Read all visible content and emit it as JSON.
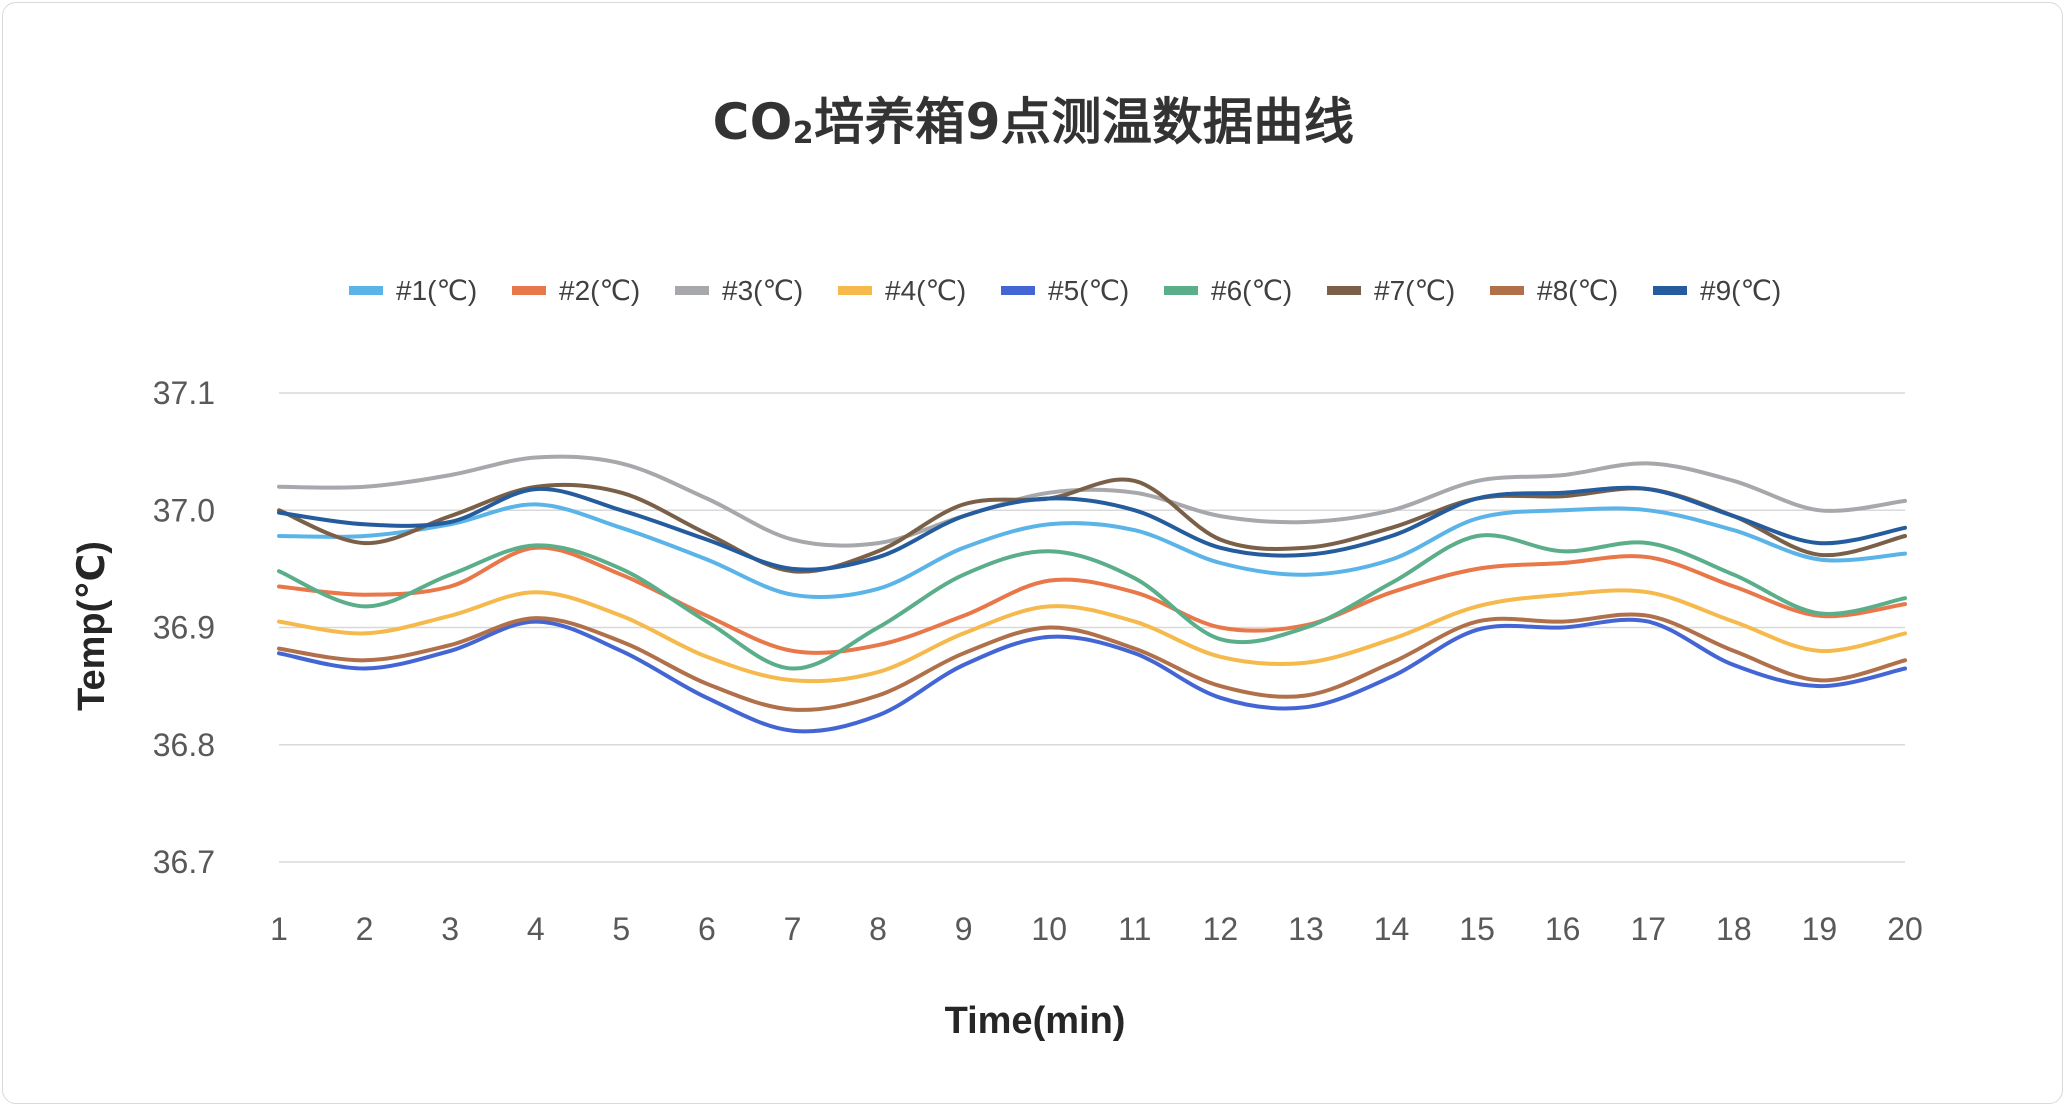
{
  "chart_data": {
    "type": "line",
    "title": "CO₂培养箱9点测温数据曲线",
    "title_prefix": "CO",
    "title_subscript": "2",
    "title_suffix": "培养箱9点测温数据曲线",
    "xlabel": "Time(min)",
    "ylabel": "Temp(℃)",
    "x_ticks": [
      "1",
      "2",
      "3",
      "4",
      "5",
      "6",
      "7",
      "8",
      "9",
      "10",
      "11",
      "12",
      "13",
      "14",
      "15",
      "16",
      "17",
      "18",
      "19",
      "20"
    ],
    "y_ticks": [
      "36.7",
      "36.8",
      "36.9",
      "37.0",
      "37.1"
    ],
    "xlim": [
      1,
      20
    ],
    "ylim": [
      36.7,
      37.1
    ],
    "grid": "horizontal",
    "legend_position": "top",
    "series": [
      {
        "name": "#1(℃)",
        "color": "#5BB4E8",
        "x": [
          1,
          2,
          3,
          4,
          5,
          6,
          7,
          8,
          9,
          10,
          11,
          12,
          13,
          14,
          15,
          16,
          17,
          18,
          19,
          20
        ],
        "values": [
          36.978,
          36.978,
          36.988,
          37.005,
          36.985,
          36.958,
          36.928,
          36.933,
          36.968,
          36.988,
          36.983,
          36.955,
          36.945,
          36.958,
          36.993,
          37.0,
          37.0,
          36.983,
          36.958,
          36.963
        ]
      },
      {
        "name": "#2(℃)",
        "color": "#E8774A",
        "x": [
          1,
          2,
          3,
          4,
          5,
          6,
          7,
          8,
          9,
          10,
          11,
          12,
          13,
          14,
          15,
          16,
          17,
          18,
          19,
          20
        ],
        "values": [
          36.935,
          36.928,
          36.935,
          36.968,
          36.945,
          36.91,
          36.88,
          36.885,
          36.91,
          36.94,
          36.93,
          36.9,
          36.902,
          36.93,
          36.95,
          36.955,
          36.96,
          36.935,
          36.91,
          36.92
        ]
      },
      {
        "name": "#3(℃)",
        "color": "#A6A8AB",
        "x": [
          1,
          2,
          3,
          4,
          5,
          6,
          7,
          8,
          9,
          10,
          11,
          12,
          13,
          14,
          15,
          16,
          17,
          18,
          19,
          20
        ],
        "values": [
          37.02,
          37.02,
          37.03,
          37.045,
          37.04,
          37.01,
          36.975,
          36.972,
          36.995,
          37.015,
          37.015,
          36.995,
          36.99,
          37.0,
          37.025,
          37.03,
          37.04,
          37.025,
          37.0,
          37.008
        ]
      },
      {
        "name": "#4(℃)",
        "color": "#F5B94C",
        "x": [
          1,
          2,
          3,
          4,
          5,
          6,
          7,
          8,
          9,
          10,
          11,
          12,
          13,
          14,
          15,
          16,
          17,
          18,
          19,
          20
        ],
        "values": [
          36.905,
          36.895,
          36.91,
          36.93,
          36.91,
          36.875,
          36.855,
          36.862,
          36.895,
          36.918,
          36.905,
          36.875,
          36.87,
          36.89,
          36.918,
          36.928,
          36.93,
          36.905,
          36.88,
          36.895
        ]
      },
      {
        "name": "#5(℃)",
        "color": "#4466D4",
        "x": [
          1,
          2,
          3,
          4,
          5,
          6,
          7,
          8,
          9,
          10,
          11,
          12,
          13,
          14,
          15,
          16,
          17,
          18,
          19,
          20
        ],
        "values": [
          36.878,
          36.865,
          36.88,
          36.905,
          36.88,
          36.84,
          36.812,
          36.825,
          36.868,
          36.892,
          36.878,
          36.84,
          36.832,
          36.858,
          36.898,
          36.9,
          36.905,
          36.868,
          36.85,
          36.865
        ]
      },
      {
        "name": "#6(℃)",
        "color": "#5BAE8A",
        "x": [
          1,
          2,
          3,
          4,
          5,
          6,
          7,
          8,
          9,
          10,
          11,
          12,
          13,
          14,
          15,
          16,
          17,
          18,
          19,
          20
        ],
        "values": [
          36.948,
          36.918,
          36.945,
          36.97,
          36.95,
          36.905,
          36.865,
          36.9,
          36.945,
          36.965,
          36.942,
          36.89,
          36.9,
          36.938,
          36.978,
          36.965,
          36.972,
          36.945,
          36.912,
          36.925
        ]
      },
      {
        "name": "#7(℃)",
        "color": "#7A6048",
        "x": [
          1,
          2,
          3,
          4,
          5,
          6,
          7,
          8,
          9,
          10,
          11,
          12,
          13,
          14,
          15,
          16,
          17,
          18,
          19,
          20
        ],
        "values": [
          37.0,
          36.972,
          36.995,
          37.02,
          37.015,
          36.98,
          36.948,
          36.965,
          37.005,
          37.01,
          37.025,
          36.975,
          36.968,
          36.985,
          37.01,
          37.012,
          37.018,
          36.995,
          36.962,
          36.978
        ]
      },
      {
        "name": "#8(℃)",
        "color": "#B0704A",
        "x": [
          1,
          2,
          3,
          4,
          5,
          6,
          7,
          8,
          9,
          10,
          11,
          12,
          13,
          14,
          15,
          16,
          17,
          18,
          19,
          20
        ],
        "values": [
          36.882,
          36.872,
          36.885,
          36.908,
          36.888,
          36.852,
          36.83,
          36.842,
          36.878,
          36.9,
          36.882,
          36.85,
          36.842,
          36.87,
          36.905,
          36.905,
          36.91,
          36.88,
          36.855,
          36.872
        ]
      },
      {
        "name": "#9(℃)",
        "color": "#245C9E",
        "x": [
          1,
          2,
          3,
          4,
          5,
          6,
          7,
          8,
          9,
          10,
          11,
          12,
          13,
          14,
          15,
          16,
          17,
          18,
          19,
          20
        ],
        "values": [
          36.998,
          36.988,
          36.99,
          37.018,
          37.0,
          36.975,
          36.95,
          36.96,
          36.995,
          37.01,
          37.0,
          36.968,
          36.962,
          36.978,
          37.01,
          37.015,
          37.018,
          36.995,
          36.972,
          36.985
        ]
      }
    ]
  }
}
